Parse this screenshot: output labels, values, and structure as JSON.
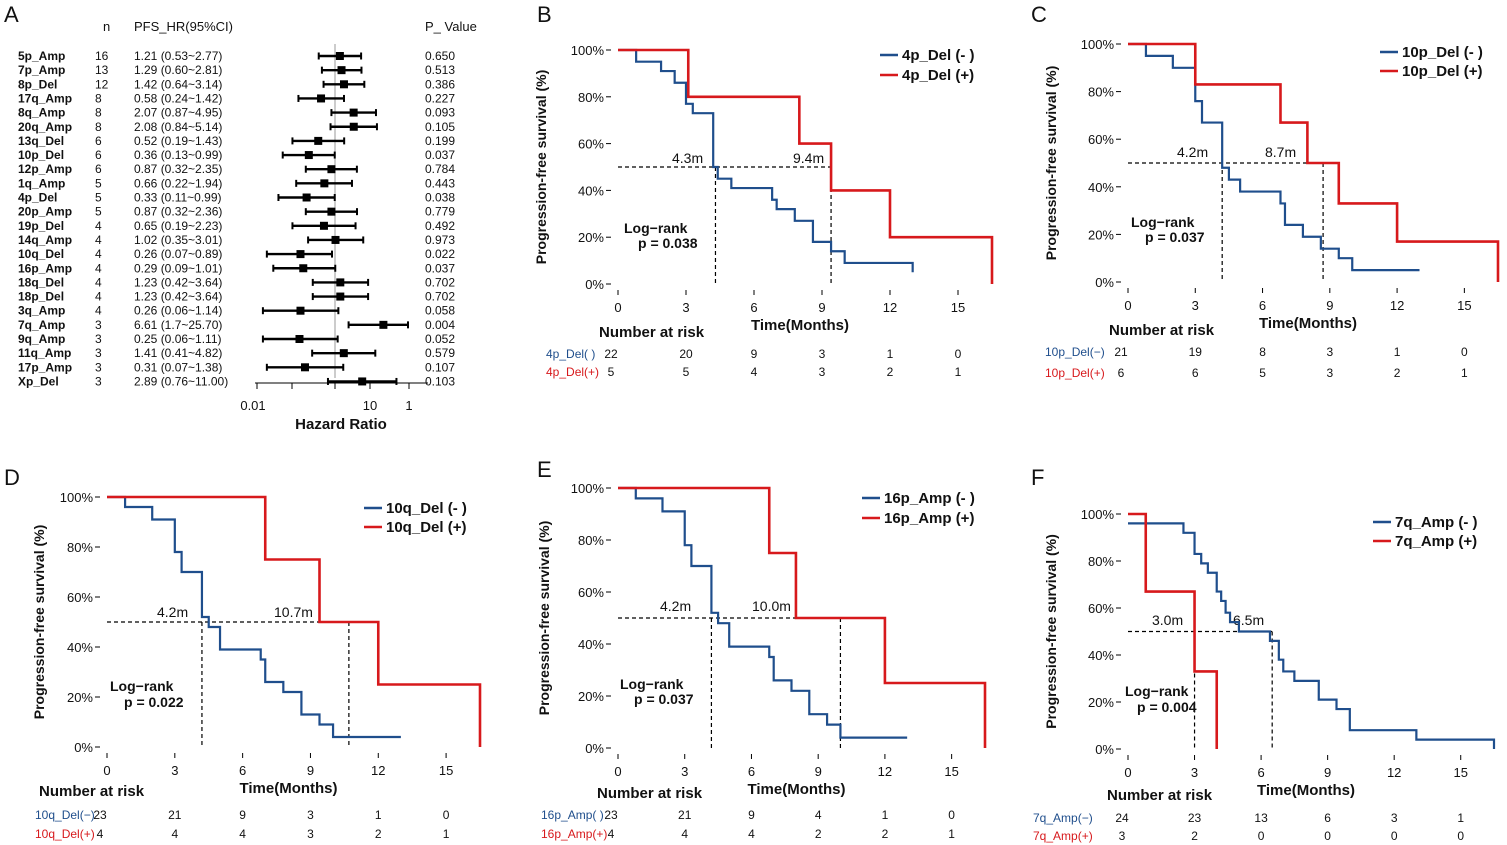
{
  "forest": {
    "panel_label": "A",
    "header_n": "n",
    "header_hr": "PFS_HR(95%CI)",
    "header_p": "P_ Value",
    "axis_label": "Hazard Ratio",
    "axis_ticks": [
      "0.01",
      "10",
      "1"
    ],
    "rows": [
      {
        "name": "5p_Amp",
        "n": "16",
        "hr_text": "1.21 (0.53~2.77)",
        "p": "0.650",
        "hr": 1.21,
        "lo": 0.53,
        "hi": 2.77
      },
      {
        "name": "7p_Amp",
        "n": "13",
        "hr_text": "1.29 (0.60~2.81)",
        "p": "0.513",
        "hr": 1.29,
        "lo": 0.6,
        "hi": 2.81
      },
      {
        "name": "8p_Del",
        "n": "12",
        "hr_text": "1.42 (0.64~3.14)",
        "p": "0.386",
        "hr": 1.42,
        "lo": 0.64,
        "hi": 3.14
      },
      {
        "name": "17q_Amp",
        "n": "8",
        "hr_text": "0.58 (0.24~1.42)",
        "p": "0.227",
        "hr": 0.58,
        "lo": 0.24,
        "hi": 1.42
      },
      {
        "name": "8q_Amp",
        "n": "8",
        "hr_text": "2.07 (0.87~4.95)",
        "p": "0.093",
        "hr": 2.07,
        "lo": 0.87,
        "hi": 4.95
      },
      {
        "name": "20q_Amp",
        "n": "8",
        "hr_text": "2.08 (0.84~5.14)",
        "p": "0.105",
        "hr": 2.08,
        "lo": 0.84,
        "hi": 5.14
      },
      {
        "name": "13q_Del",
        "n": "6",
        "hr_text": "0.52 (0.19~1.43)",
        "p": "0.199",
        "hr": 0.52,
        "lo": 0.19,
        "hi": 1.43
      },
      {
        "name": "10p_Del",
        "n": "6",
        "hr_text": "0.36 (0.13~0.99)",
        "p": "0.037",
        "hr": 0.36,
        "lo": 0.13,
        "hi": 0.99
      },
      {
        "name": "12p_Amp",
        "n": "6",
        "hr_text": "0.87 (0.32~2.35)",
        "p": "0.784",
        "hr": 0.87,
        "lo": 0.32,
        "hi": 2.35
      },
      {
        "name": "1q_Amp",
        "n": "5",
        "hr_text": "0.66 (0.22~1.94)",
        "p": "0.443",
        "hr": 0.66,
        "lo": 0.22,
        "hi": 1.94
      },
      {
        "name": "4p_Del",
        "n": "5",
        "hr_text": "0.33 (0.11~0.99)",
        "p": "0.038",
        "hr": 0.33,
        "lo": 0.11,
        "hi": 0.99
      },
      {
        "name": "20p_Amp",
        "n": "5",
        "hr_text": "0.87 (0.32~2.36)",
        "p": "0.779",
        "hr": 0.87,
        "lo": 0.32,
        "hi": 2.36
      },
      {
        "name": "19p_Del",
        "n": "4",
        "hr_text": "0.65 (0.19~2.23)",
        "p": "0.492",
        "hr": 0.65,
        "lo": 0.19,
        "hi": 2.23
      },
      {
        "name": "14q_Amp",
        "n": "4",
        "hr_text": "1.02 (0.35~3.01)",
        "p": "0.973",
        "hr": 1.02,
        "lo": 0.35,
        "hi": 3.01
      },
      {
        "name": "10q_Del",
        "n": "4",
        "hr_text": "0.26 (0.07~0.89)",
        "p": "0.022",
        "hr": 0.26,
        "lo": 0.07,
        "hi": 0.89
      },
      {
        "name": "16p_Amp",
        "n": "4",
        "hr_text": "0.29 (0.09~1.01)",
        "p": "0.037",
        "hr": 0.29,
        "lo": 0.09,
        "hi": 1.01
      },
      {
        "name": "18q_Del",
        "n": "4",
        "hr_text": "1.23 (0.42~3.64)",
        "p": "0.702",
        "hr": 1.23,
        "lo": 0.42,
        "hi": 3.64
      },
      {
        "name": "18p_Del",
        "n": "4",
        "hr_text": "1.23 (0.42~3.64)",
        "p": "0.702",
        "hr": 1.23,
        "lo": 0.42,
        "hi": 3.64
      },
      {
        "name": "3q_Amp",
        "n": "4",
        "hr_text": "0.26 (0.06~1.14)",
        "p": "0.058",
        "hr": 0.26,
        "lo": 0.06,
        "hi": 1.14
      },
      {
        "name": "7q_Amp",
        "n": "3",
        "hr_text": "6.61 (1.7~25.70)",
        "p": "0.004",
        "hr": 6.61,
        "lo": 1.7,
        "hi": 25.7
      },
      {
        "name": "9q_Amp",
        "n": "3",
        "hr_text": "0.25 (0.06~1.11)",
        "p": "0.052",
        "hr": 0.25,
        "lo": 0.06,
        "hi": 1.11
      },
      {
        "name": "11q_Amp",
        "n": "3",
        "hr_text": "1.41 (0.41~4.82)",
        "p": "0.579",
        "hr": 1.41,
        "lo": 0.41,
        "hi": 4.82
      },
      {
        "name": "17p_Amp",
        "n": "3",
        "hr_text": "0.31 (0.07~1.38)",
        "p": "0.107",
        "hr": 0.31,
        "lo": 0.07,
        "hi": 1.38
      },
      {
        "name": "Xp_Del",
        "n": "3",
        "hr_text": "2.89 (0.76~11.00)",
        "p": "0.103",
        "hr": 2.89,
        "lo": 0.76,
        "hi": 11.0
      }
    ]
  },
  "chart_data": [
    {
      "type": "line",
      "panel": "B",
      "xlabel": "Time(Months)",
      "ylabel": "Progression-free survival (%)",
      "x_ticks": [
        "0",
        "3",
        "6",
        "9",
        "12",
        "15"
      ],
      "y_ticks": [
        "0%",
        "20%",
        "40%",
        "60%",
        "80%",
        "100%"
      ],
      "xlim": [
        0,
        16.5
      ],
      "ylim": [
        0,
        100
      ],
      "series": [
        {
          "name": "4p_Del (- )",
          "color": "#1f4e8c",
          "t": [
            0,
            0.8,
            1.9,
            2.5,
            3.0,
            3.3,
            4.2,
            4.4,
            5.0,
            6.8,
            7.0,
            7.8,
            8.6,
            9.4,
            10.0,
            13.0
          ],
          "s": [
            100,
            95,
            91,
            86,
            77,
            73,
            50,
            45,
            41,
            36,
            32,
            27,
            18,
            14,
            9,
            5
          ]
        },
        {
          "name": "4p_Del (+)",
          "color": "#d7191c",
          "t": [
            0,
            3.1,
            8.0,
            9.4,
            12.0,
            16.5
          ],
          "s": [
            100,
            80,
            60,
            40,
            20,
            0
          ]
        }
      ],
      "medians": [
        {
          "t": 4.3,
          "label": "4.3m"
        },
        {
          "t": 9.4,
          "label": "9.4m"
        }
      ],
      "logrank": "Log−rank",
      "pvalue": "p = 0.038",
      "risk_title": "Number at risk",
      "risk_time": [
        "0",
        "3",
        "6",
        "9",
        "12",
        "15"
      ],
      "risk_rows": [
        {
          "label": "4p_Del( )",
          "values": [
            "22",
            "20",
            "9",
            "3",
            "1",
            "0"
          ]
        },
        {
          "label": "4p_Del(+)",
          "values": [
            "5",
            "5",
            "4",
            "3",
            "2",
            "1"
          ]
        }
      ]
    },
    {
      "type": "line",
      "panel": "C",
      "xlabel": "Time(Months)",
      "ylabel": "Progression-free survival (%)",
      "x_ticks": [
        "0",
        "3",
        "6",
        "9",
        "12",
        "15"
      ],
      "y_ticks": [
        "0%",
        "20%",
        "40%",
        "60%",
        "80%",
        "100%"
      ],
      "xlim": [
        0,
        16.5
      ],
      "ylim": [
        0,
        100
      ],
      "series": [
        {
          "name": "10p_Del (- )",
          "color": "#1f4e8c",
          "t": [
            0,
            0.8,
            2.0,
            3.0,
            3.3,
            4.2,
            4.5,
            5.0,
            6.8,
            7.0,
            7.8,
            8.6,
            9.4,
            10.0,
            13.0
          ],
          "s": [
            100,
            95,
            90,
            76,
            67,
            48,
            43,
            38,
            33,
            24,
            19,
            14,
            10,
            5,
            5
          ]
        },
        {
          "name": "10p_Del (+)",
          "color": "#d7191c",
          "t": [
            0,
            3.0,
            6.8,
            8.0,
            9.4,
            12.0,
            16.5
          ],
          "s": [
            100,
            83,
            67,
            50,
            33,
            17,
            0
          ]
        }
      ],
      "medians": [
        {
          "t": 4.2,
          "label": "4.2m"
        },
        {
          "t": 8.7,
          "label": "8.7m"
        }
      ],
      "logrank": "Log−rank",
      "pvalue": "p = 0.037",
      "risk_title": "Number at risk",
      "risk_time": [
        "0",
        "3",
        "6",
        "9",
        "12",
        "15"
      ],
      "risk_rows": [
        {
          "label": "10p_Del(−)",
          "values": [
            "21",
            "19",
            "8",
            "3",
            "1",
            "0"
          ]
        },
        {
          "label": "10p_Del(+)",
          "values": [
            "6",
            "6",
            "5",
            "3",
            "2",
            "1"
          ]
        }
      ]
    },
    {
      "type": "line",
      "panel": "D",
      "xlabel": "Time(Months)",
      "ylabel": "Progression-free survival (%)",
      "x_ticks": [
        "0",
        "3",
        "6",
        "9",
        "12",
        "15"
      ],
      "y_ticks": [
        "0%",
        "20%",
        "40%",
        "60%",
        "80%",
        "100%"
      ],
      "xlim": [
        0,
        16.5
      ],
      "ylim": [
        0,
        100
      ],
      "series": [
        {
          "name": "10q_Del (- )",
          "color": "#1f4e8c",
          "t": [
            0,
            0.8,
            2.0,
            3.0,
            3.3,
            4.2,
            4.5,
            5.0,
            6.8,
            7.0,
            7.8,
            8.6,
            9.4,
            10.0,
            13.0
          ],
          "s": [
            100,
            96,
            91,
            78,
            70,
            52,
            48,
            39,
            35,
            26,
            22,
            13,
            9,
            4,
            4
          ]
        },
        {
          "name": "10q_Del (+)",
          "color": "#d7191c",
          "t": [
            0,
            7.0,
            9.4,
            12.0,
            16.5
          ],
          "s": [
            100,
            75,
            50,
            25,
            0
          ]
        }
      ],
      "medians": [
        {
          "t": 4.2,
          "label": "4.2m"
        },
        {
          "t": 10.7,
          "label": "10.7m"
        }
      ],
      "logrank": "Log−rank",
      "pvalue": "p = 0.022",
      "risk_title": "Number at risk",
      "risk_time": [
        "0",
        "3",
        "6",
        "9",
        "12",
        "15"
      ],
      "risk_rows": [
        {
          "label": "10q_Del(−)",
          "values": [
            "23",
            "21",
            "9",
            "3",
            "1",
            "0"
          ]
        },
        {
          "label": "10q_Del(+)",
          "values": [
            "4",
            "4",
            "4",
            "3",
            "2",
            "1"
          ]
        }
      ]
    },
    {
      "type": "line",
      "panel": "E",
      "xlabel": "Time(Months)",
      "ylabel": "Progression-free survival (%)",
      "x_ticks": [
        "0",
        "3",
        "6",
        "9",
        "12",
        "15"
      ],
      "y_ticks": [
        "0%",
        "20%",
        "40%",
        "60%",
        "80%",
        "100%"
      ],
      "xlim": [
        0,
        16.5
      ],
      "ylim": [
        0,
        100
      ],
      "series": [
        {
          "name": "16p_Amp (- )",
          "color": "#1f4e8c",
          "t": [
            0,
            0.8,
            2.0,
            3.0,
            3.3,
            4.2,
            4.5,
            5.0,
            6.8,
            7.0,
            7.8,
            8.6,
            9.4,
            10.0,
            13.0
          ],
          "s": [
            100,
            96,
            91,
            78,
            70,
            52,
            48,
            39,
            35,
            26,
            22,
            13,
            9,
            4,
            4
          ]
        },
        {
          "name": "16p_Amp (+)",
          "color": "#d7191c",
          "t": [
            0,
            6.8,
            8.0,
            12.0,
            16.5
          ],
          "s": [
            100,
            75,
            50,
            25,
            0
          ]
        }
      ],
      "medians": [
        {
          "t": 4.2,
          "label": "4.2m"
        },
        {
          "t": 10.0,
          "label": "10.0m"
        }
      ],
      "logrank": "Log−rank",
      "pvalue": "p = 0.037",
      "risk_title": "Number at risk",
      "risk_time": [
        "0",
        "3",
        "6",
        "9",
        "12",
        "15"
      ],
      "risk_rows": [
        {
          "label": "16p_Amp( )",
          "values": [
            "23",
            "21",
            "9",
            "4",
            "1",
            "0"
          ]
        },
        {
          "label": "16p_Amp(+)",
          "values": [
            "4",
            "4",
            "4",
            "2",
            "2",
            "1"
          ]
        }
      ]
    },
    {
      "type": "line",
      "panel": "F",
      "xlabel": "Time(Months)",
      "ylabel": "Progression-free survival (%)",
      "x_ticks": [
        "0",
        "3",
        "6",
        "9",
        "12",
        "15"
      ],
      "y_ticks": [
        "0%",
        "20%",
        "40%",
        "60%",
        "80%",
        "100%"
      ],
      "xlim": [
        0,
        16.5
      ],
      "ylim": [
        0,
        100
      ],
      "series": [
        {
          "name": "7q_Amp (- )",
          "color": "#1f4e8c",
          "t": [
            0,
            2.5,
            3.0,
            3.3,
            3.6,
            4.0,
            4.2,
            4.4,
            4.6,
            5.0,
            6.4,
            6.8,
            7.0,
            7.5,
            8.6,
            9.4,
            10.0,
            13.0,
            16.5
          ],
          "s": [
            96,
            92,
            83,
            79,
            75,
            67,
            63,
            58,
            54,
            50,
            46,
            38,
            33,
            29,
            21,
            17,
            8,
            4,
            0
          ]
        },
        {
          "name": "7q_Amp (+)",
          "color": "#d7191c",
          "t": [
            0,
            0.8,
            3.0,
            4.0
          ],
          "s": [
            100,
            67,
            33,
            0
          ]
        }
      ],
      "medians": [
        {
          "t": 3.0,
          "label": "3.0m"
        },
        {
          "t": 6.5,
          "label": "6.5m"
        }
      ],
      "logrank": "Log−rank",
      "pvalue": "p = 0.004",
      "risk_title": "Number at risk",
      "risk_time": [
        "0",
        "3",
        "6",
        "9",
        "12",
        "15"
      ],
      "risk_rows": [
        {
          "label": "7q_Amp(−)",
          "values": [
            "24",
            "23",
            "13",
            "6",
            "3",
            "1"
          ]
        },
        {
          "label": "7q_Amp(+)",
          "values": [
            "3",
            "2",
            "0",
            "0",
            "0",
            "0"
          ]
        }
      ]
    }
  ]
}
